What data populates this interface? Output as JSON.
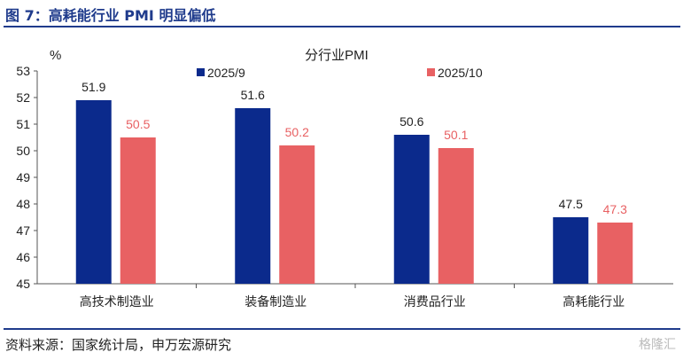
{
  "figure_title": "图 7：高耗能行业 PMI 明显偏低",
  "source_note": "资料来源：国家统计局，申万宏源研究",
  "watermark": "格隆汇",
  "colors": {
    "series1": "#0b2a8c",
    "series2": "#e86163",
    "rule": "#1f3b8c"
  },
  "chart_data": {
    "type": "bar",
    "title": "分行业PMI",
    "ylabel": "%",
    "xlabel": "",
    "ylim": [
      45,
      53
    ],
    "yticks": [
      45,
      46,
      47,
      48,
      49,
      50,
      51,
      52,
      53
    ],
    "categories": [
      "高技术制造业",
      "装备制造业",
      "消费品行业",
      "高耗能行业"
    ],
    "series": [
      {
        "name": "2025/9",
        "values": [
          51.9,
          51.6,
          50.6,
          47.5
        ]
      },
      {
        "name": "2025/10",
        "values": [
          50.5,
          50.2,
          50.1,
          47.3
        ]
      }
    ],
    "legend_position": "top",
    "grid": false,
    "data_labels": true
  }
}
